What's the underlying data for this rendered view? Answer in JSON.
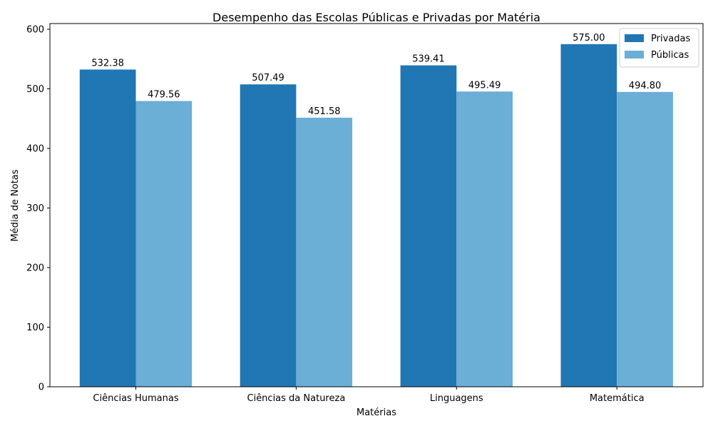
{
  "chart_data": {
    "type": "bar",
    "title": "Desempenho das Escolas Públicas e Privadas por Matéria",
    "xlabel": "Matérias",
    "ylabel": "Média de Notas",
    "categories": [
      "Ciências Humanas",
      "Ciências da Natureza",
      "Linguagens",
      "Matemática"
    ],
    "series": [
      {
        "name": "Privadas",
        "color": "#2077b4",
        "values": [
          532.38,
          507.49,
          539.41,
          575.0
        ],
        "labels": [
          "532.38",
          "507.49",
          "539.41",
          "575.00"
        ]
      },
      {
        "name": "Públicas",
        "color": "#6baed6",
        "values": [
          479.56,
          451.58,
          495.49,
          494.8
        ],
        "labels": [
          "479.56",
          "451.58",
          "495.49",
          "494.80"
        ]
      }
    ],
    "ylim": [
      0,
      600
    ],
    "yticks": [
      "0",
      "100",
      "200",
      "300",
      "400",
      "500",
      "600"
    ],
    "grid": false,
    "legend_position": "top-right"
  }
}
